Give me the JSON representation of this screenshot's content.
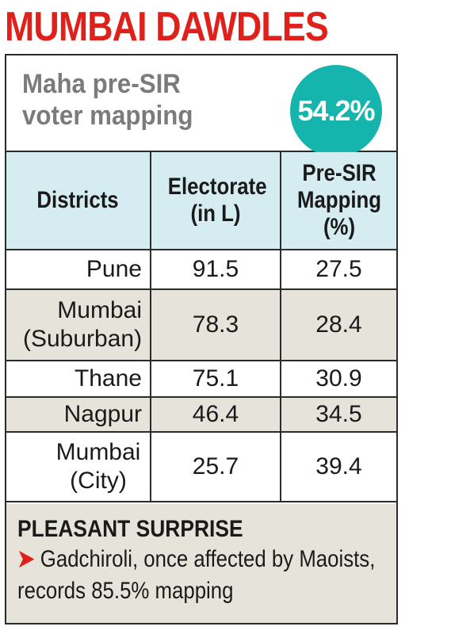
{
  "title": "MUMBAI DAWDLES",
  "header": {
    "subtitle_line1": "Maha pre-SIR",
    "subtitle_line2": "voter mapping",
    "badge_value": "54.2%",
    "badge_color": "#15b5ad"
  },
  "table": {
    "columns": {
      "districts": "Districts",
      "electorate": "Electorate (in L)",
      "mapping": "Pre-SIR Mapping (%)"
    },
    "rows": [
      {
        "district": "Pune",
        "electorate": "91.5",
        "mapping": "27.5"
      },
      {
        "district": "Mumbai (Suburban)",
        "electorate": "78.3",
        "mapping": "28.4"
      },
      {
        "district": "Thane",
        "electorate": "75.1",
        "mapping": "30.9"
      },
      {
        "district": "Nagpur",
        "electorate": "46.4",
        "mapping": "34.5"
      },
      {
        "district": "Mumbai (City)",
        "electorate": "25.7",
        "mapping": "39.4"
      }
    ]
  },
  "footer": {
    "heading": "PLEASANT SURPRISE",
    "arrow": "➤",
    "text": "Gadchiroli, once affected by Maoists, records 85.5% mapping"
  },
  "colors": {
    "title_red": "#e0201b",
    "header_blue": "#d5ecf1",
    "row_shade": "#e5e3da"
  }
}
